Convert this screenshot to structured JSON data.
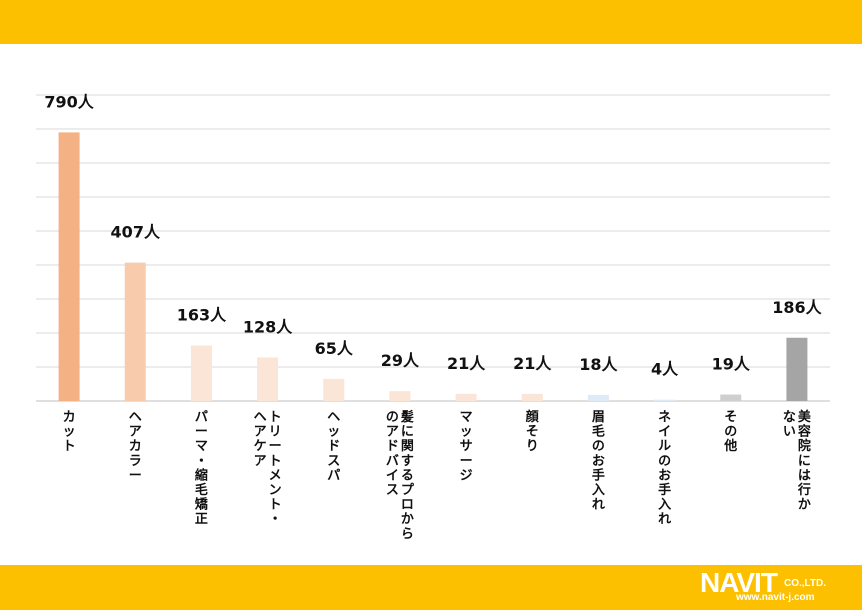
{
  "chart_data": {
    "type": "bar",
    "unit": "人",
    "categories": [
      "カット",
      "ヘアカラー",
      "パーマ・縮毛矯正",
      "トリートメント・ヘアケア",
      "ヘッドスパ",
      "髪に関するプロからのアドバイス",
      "マッサージ",
      "顔そり",
      "眉毛のお手入れ",
      "ネイルのお手入れ",
      "その他",
      "美容院には行かない"
    ],
    "category_lines": [
      [
        "カット"
      ],
      [
        "ヘアカラー"
      ],
      [
        "パーマ・縮毛矯正"
      ],
      [
        "トリートメント・",
        "ヘアケア"
      ],
      [
        "ヘッドスパ"
      ],
      [
        "髪に関するプロから",
        "のアドバイス"
      ],
      [
        "マッサージ"
      ],
      [
        "顔そり"
      ],
      [
        "眉毛のお手入れ"
      ],
      [
        "ネイルのお手入れ"
      ],
      [
        "その他"
      ],
      [
        "美容院には行か",
        "ない"
      ]
    ],
    "values": [
      790,
      407,
      163,
      128,
      65,
      29,
      21,
      21,
      18,
      4,
      19,
      186
    ],
    "value_labels": [
      "790人",
      "407人",
      "163人",
      "128人",
      "65人",
      "29人",
      "21人",
      "21人",
      "18人",
      "4人",
      "19人",
      "186人"
    ],
    "bar_colors": [
      "#F4B183",
      "#F8CBAD",
      "#FBE5D6",
      "#FBE5D6",
      "#FBE5D6",
      "#FBE5D6",
      "#FBE5D6",
      "#FBE5D6",
      "#DEEBF7",
      "#DEEBF7",
      "#D0CECE",
      "#A5A5A5"
    ],
    "ylim": [
      0,
      900
    ],
    "grid": true,
    "title": "",
    "xlabel": "",
    "ylabel": ""
  },
  "branding": {
    "logo_text": "NAVIT",
    "company_suffix": "CO.,LTD.",
    "url": "www.navit-j.com"
  },
  "colors": {
    "banner": "#FCC000"
  }
}
